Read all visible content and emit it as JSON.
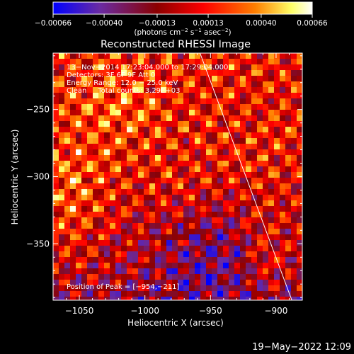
{
  "chart_data": {
    "type": "heatmap",
    "title": "Reconstructed RHESSI Image",
    "xlabel": "Heliocentric X (arcsec)",
    "ylabel": "Heliocentric Y (arcsec)",
    "xlim": [
      -1070,
      -880
    ],
    "ylim": [
      -392,
      -208
    ],
    "x_ticks": [
      -1050,
      -1000,
      -950,
      -900
    ],
    "x_tick_labels": [
      "−1050",
      "−1000",
      "−950",
      "−900"
    ],
    "y_ticks": [
      -250,
      -300,
      -350
    ],
    "y_tick_labels": [
      "−250",
      "−300",
      "−350"
    ],
    "colorbar": {
      "ticks": [
        -0.00066,
        -0.0004,
        -0.00013,
        0.00013,
        0.0004,
        0.00066
      ],
      "tick_labels": [
        "−0.00066",
        "−0.00040",
        "−0.00013",
        "0.00013",
        "0.00040",
        "0.00066"
      ],
      "units_label": "(photons cm",
      "units_exp1": "−2",
      "units_mid": " s",
      "units_exp2": "−1",
      "units_mid2": " asec",
      "units_exp3": "−2",
      "units_close": ")",
      "range": [
        -0.00066,
        0.00066
      ]
    },
    "annotations": [
      "13−Nov−2014 17:23:04.000 to 17:29:04.000",
      "Detectors: 3F 6F 9F  Att 0",
      "Energy Range: 12.0 − 25.0 keV",
      "Clean     Total counts: 3.29E+03"
    ],
    "peak_label": "Position of Peak = [−954,−211]",
    "limb_line": {
      "x": [
        -958,
        -888
      ],
      "y": [
        -208,
        -392
      ]
    },
    "colors": {
      "stops": [
        "#0000ff",
        "#6a2ba3",
        "#8b0000",
        "#ff0000",
        "#ff7f00",
        "#ffff66",
        "#ffffff"
      ]
    }
  },
  "footer": {
    "timestamp": "19−May−2022 12:09"
  }
}
